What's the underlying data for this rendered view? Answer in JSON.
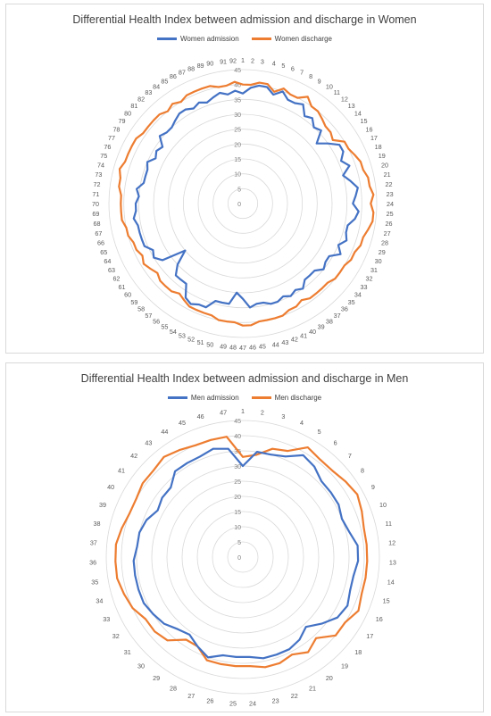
{
  "chart_data": [
    {
      "type": "radar",
      "title": "Differential Health Index between admission and discharge in Women",
      "rlim": [
        0,
        45
      ],
      "ticks": [
        0,
        5,
        10,
        15,
        20,
        25,
        30,
        35,
        40,
        45
      ],
      "categories": [
        "1",
        "2",
        "3",
        "4",
        "5",
        "6",
        "7",
        "8",
        "9",
        "10",
        "11",
        "12",
        "13",
        "14",
        "15",
        "16",
        "17",
        "18",
        "19",
        "20",
        "21",
        "22",
        "23",
        "24",
        "25",
        "26",
        "27",
        "28",
        "29",
        "30",
        "31",
        "32",
        "33",
        "34",
        "35",
        "36",
        "37",
        "38",
        "39",
        "40",
        "41",
        "42",
        "43",
        "44",
        "45",
        "46",
        "47",
        "48",
        "49",
        "50",
        "51",
        "52",
        "53",
        "54",
        "55",
        "56",
        "57",
        "58",
        "59",
        "60",
        "61",
        "62",
        "63",
        "64",
        "65",
        "66",
        "67",
        "68",
        "69",
        "70",
        "71",
        "72",
        "73",
        "74",
        "75",
        "76",
        "77",
        "78",
        "79",
        "80",
        "81",
        "82",
        "83",
        "84",
        "85",
        "86",
        "87",
        "88",
        "89",
        "90",
        "91",
        "92"
      ],
      "series": [
        {
          "name": "Women admission",
          "color": "#4472c4",
          "values": [
            37,
            39,
            40,
            40,
            38,
            40,
            38,
            38,
            39,
            36,
            37,
            35,
            36,
            32,
            35,
            38,
            38,
            36,
            38,
            35,
            37,
            39,
            38,
            37,
            39,
            38,
            36,
            36,
            37,
            35,
            37,
            34,
            34,
            35,
            33,
            33,
            33,
            35,
            34,
            35,
            34,
            35,
            35,
            34,
            34,
            35,
            32,
            30,
            34,
            34,
            34,
            37,
            37,
            38,
            37,
            33,
            33,
            33,
            30,
            25,
            33,
            35,
            34,
            36,
            36,
            36,
            36,
            37,
            36,
            36,
            35,
            36,
            34,
            34,
            34,
            35,
            33,
            34,
            33,
            36,
            35,
            35,
            36,
            37,
            37,
            36,
            37,
            36,
            37,
            38,
            37,
            38
          ]
        },
        {
          "name": "Women discharge",
          "color": "#ed7d31",
          "values": [
            40,
            40,
            41,
            41,
            39,
            41,
            40,
            40,
            42,
            40,
            40,
            39,
            38,
            38,
            37,
            40,
            40,
            41,
            42,
            42,
            43,
            43,
            44,
            43,
            44,
            44,
            43,
            42,
            42,
            41,
            41,
            40,
            40,
            40,
            39,
            39,
            39,
            39,
            38,
            39,
            39,
            40,
            40,
            40,
            40,
            41,
            41,
            40,
            40,
            40,
            39,
            39,
            39,
            39,
            38,
            37,
            38,
            38,
            38,
            37,
            38,
            39,
            38,
            39,
            39,
            40,
            40,
            41,
            41,
            41,
            41,
            42,
            42,
            43,
            42,
            42,
            42,
            42,
            41,
            41,
            41,
            41,
            40,
            41,
            40,
            41,
            41,
            41,
            41,
            40,
            40,
            41
          ]
        }
      ]
    },
    {
      "type": "radar",
      "title": "Differential Health Index between admission and discharge in Men",
      "rlim": [
        0,
        45
      ],
      "ticks": [
        0,
        5,
        10,
        15,
        20,
        25,
        30,
        35,
        40,
        45
      ],
      "categories": [
        "1",
        "2",
        "3",
        "4",
        "5",
        "6",
        "7",
        "8",
        "9",
        "10",
        "11",
        "12",
        "13",
        "14",
        "15",
        "16",
        "17",
        "18",
        "19",
        "20",
        "21",
        "22",
        "23",
        "24",
        "25",
        "26",
        "27",
        "28",
        "29",
        "30",
        "31",
        "32",
        "33",
        "34",
        "35",
        "36",
        "37",
        "38",
        "39",
        "40",
        "41",
        "42",
        "43",
        "44",
        "45",
        "46",
        "47"
      ],
      "series": [
        {
          "name": "Men admission",
          "color": "#4472c4",
          "values": [
            30,
            35,
            35,
            36,
            39,
            38,
            36,
            36,
            36,
            35,
            36,
            38,
            38,
            37,
            37,
            38,
            37,
            34,
            31,
            33,
            34,
            34,
            34,
            33,
            33,
            33,
            35,
            33,
            31,
            32,
            34,
            35,
            36,
            36,
            36,
            36,
            35,
            35,
            34,
            32,
            33,
            33,
            36,
            36,
            36,
            37,
            36
          ]
        },
        {
          "name": "Men discharge",
          "color": "#ed7d31",
          "values": [
            33,
            34,
            37,
            38,
            42,
            41,
            41,
            42,
            43,
            42,
            41,
            41,
            41,
            41,
            41,
            42,
            40,
            40,
            36,
            38,
            36,
            37,
            37,
            36,
            36,
            36,
            36,
            33,
            33,
            37,
            38,
            38,
            40,
            41,
            42,
            42,
            42,
            41,
            40,
            40,
            41,
            41,
            42,
            41,
            40,
            40,
            40
          ]
        }
      ]
    }
  ]
}
